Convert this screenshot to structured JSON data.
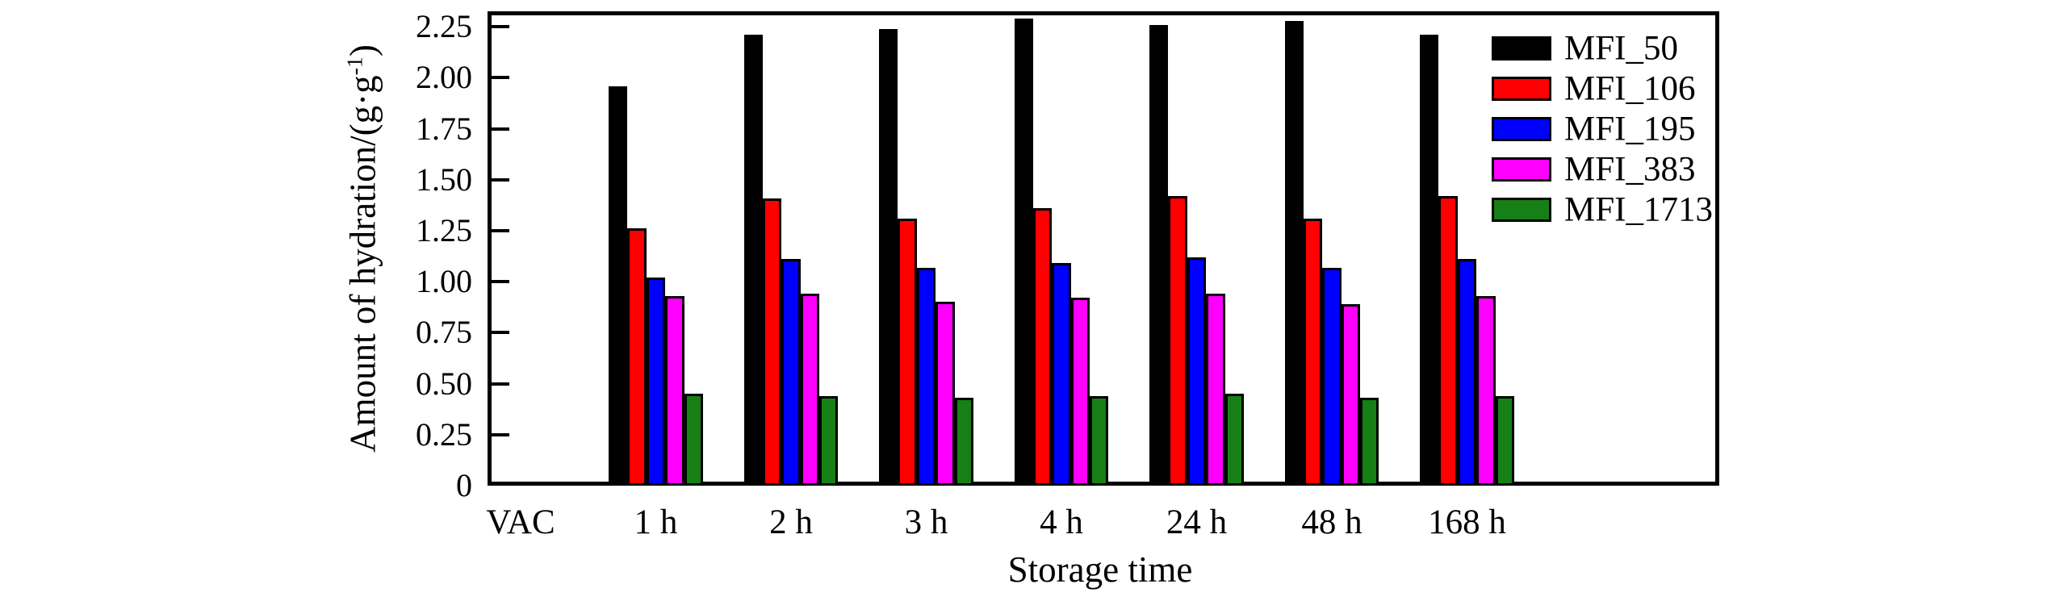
{
  "chart_data": {
    "type": "bar",
    "title": "",
    "xlabel": "Storage time",
    "ylabel": "Amount of hydration/(g·g⁻¹)",
    "ylabel_parts": {
      "main": "Amount of hydration/(g·g",
      "sup": "-1",
      "close": ")"
    },
    "categories": [
      "VAC",
      "1 h",
      "2 h",
      "3 h",
      "4 h",
      "24 h",
      "48 h",
      "168 h"
    ],
    "series": [
      {
        "name": "MFI_50",
        "color": "#000000",
        "values": [
          0,
          1.96,
          2.21,
          2.24,
          2.29,
          2.26,
          2.28,
          2.21
        ]
      },
      {
        "name": "MFI_106",
        "color": "#FF0000",
        "values": [
          0,
          1.26,
          1.41,
          1.31,
          1.36,
          1.42,
          1.31,
          1.42
        ]
      },
      {
        "name": "MFI_195",
        "color": "#0000FF",
        "values": [
          0,
          1.02,
          1.11,
          1.07,
          1.09,
          1.12,
          1.07,
          1.11
        ]
      },
      {
        "name": "MFI_383",
        "color": "#FF00FF",
        "values": [
          0,
          0.93,
          0.94,
          0.9,
          0.92,
          0.94,
          0.89,
          0.93
        ]
      },
      {
        "name": "MFI_1713",
        "color": "#168016",
        "values": [
          0,
          0.45,
          0.44,
          0.43,
          0.44,
          0.45,
          0.43,
          0.44
        ]
      }
    ],
    "y_ticks": [
      {
        "value": 0,
        "label": "0"
      },
      {
        "value": 0.25,
        "label": "0.25"
      },
      {
        "value": 0.5,
        "label": "0.50"
      },
      {
        "value": 0.75,
        "label": "0.75"
      },
      {
        "value": 1.0,
        "label": "1.00"
      },
      {
        "value": 1.25,
        "label": "1.25"
      },
      {
        "value": 1.5,
        "label": "1.50"
      },
      {
        "value": 1.75,
        "label": "1.75"
      },
      {
        "value": 2.0,
        "label": "2.00"
      },
      {
        "value": 2.25,
        "label": "2.25"
      }
    ],
    "ylim": [
      0,
      2.33
    ],
    "grid": false,
    "legend_position": "top-right-inside"
  }
}
